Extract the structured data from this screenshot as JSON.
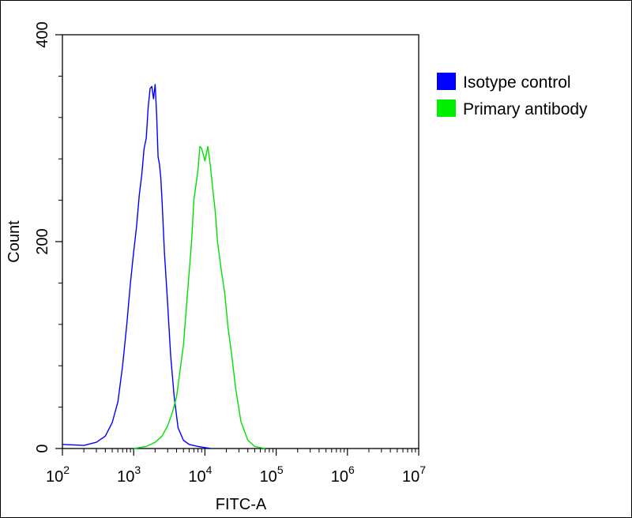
{
  "chart_data": {
    "type": "line",
    "xlabel": "FITC-A",
    "ylabel": "Count",
    "x_scale": "log",
    "xlim": [
      100,
      10000000
    ],
    "ylim": [
      0,
      400
    ],
    "x_ticks": [
      {
        "base": "10",
        "exp": "2"
      },
      {
        "base": "10",
        "exp": "3"
      },
      {
        "base": "10",
        "exp": "4"
      },
      {
        "base": "10",
        "exp": "5"
      },
      {
        "base": "10",
        "exp": "6"
      },
      {
        "base": "10",
        "exp": "7"
      }
    ],
    "y_ticks": [
      "0",
      "200",
      "400"
    ],
    "legend_position": "right",
    "series": [
      {
        "name": "Isotype control",
        "color": "#0000ff",
        "points": [
          [
            100,
            4
          ],
          [
            200,
            3
          ],
          [
            300,
            6
          ],
          [
            400,
            12
          ],
          [
            500,
            25
          ],
          [
            600,
            45
          ],
          [
            700,
            80
          ],
          [
            800,
            120
          ],
          [
            900,
            160
          ],
          [
            1000,
            190
          ],
          [
            1100,
            215
          ],
          [
            1200,
            245
          ],
          [
            1300,
            265
          ],
          [
            1400,
            290
          ],
          [
            1500,
            300
          ],
          [
            1600,
            330
          ],
          [
            1700,
            348
          ],
          [
            1800,
            350
          ],
          [
            1900,
            338
          ],
          [
            2000,
            352
          ],
          [
            2100,
            322
          ],
          [
            2200,
            282
          ],
          [
            2300,
            275
          ],
          [
            2400,
            262
          ],
          [
            2500,
            240
          ],
          [
            2700,
            190
          ],
          [
            3000,
            140
          ],
          [
            3300,
            90
          ],
          [
            3700,
            50
          ],
          [
            4200,
            20
          ],
          [
            5000,
            8
          ],
          [
            6000,
            4
          ],
          [
            8000,
            2
          ],
          [
            12000,
            0
          ]
        ]
      },
      {
        "name": "Primary antibody",
        "color": "#00e000",
        "points": [
          [
            1000,
            0
          ],
          [
            1500,
            2
          ],
          [
            2000,
            6
          ],
          [
            2500,
            12
          ],
          [
            3000,
            22
          ],
          [
            3500,
            35
          ],
          [
            4000,
            50
          ],
          [
            5000,
            100
          ],
          [
            6000,
            170
          ],
          [
            6500,
            200
          ],
          [
            7000,
            240
          ],
          [
            7500,
            255
          ],
          [
            8000,
            270
          ],
          [
            8500,
            292
          ],
          [
            9000,
            290
          ],
          [
            10000,
            278
          ],
          [
            11000,
            292
          ],
          [
            12000,
            272
          ],
          [
            13000,
            248
          ],
          [
            14000,
            228
          ],
          [
            15000,
            200
          ],
          [
            17000,
            172
          ],
          [
            19000,
            150
          ],
          [
            21000,
            118
          ],
          [
            24000,
            88
          ],
          [
            27000,
            58
          ],
          [
            32000,
            26
          ],
          [
            40000,
            8
          ],
          [
            50000,
            2
          ],
          [
            70000,
            0
          ]
        ]
      }
    ]
  }
}
